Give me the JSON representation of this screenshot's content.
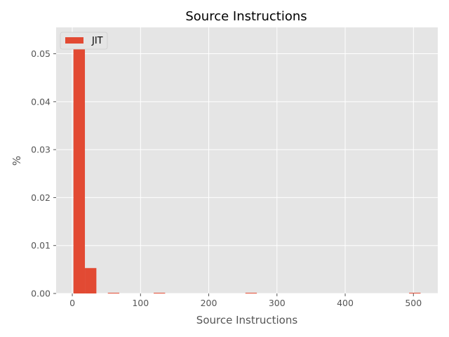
{
  "chart_data": {
    "type": "bar",
    "title": "Source Instructions",
    "xlabel": "Source Instructions",
    "ylabel": "%",
    "xlim": [
      -23.7,
      535.7
    ],
    "ylim": [
      0,
      0.0555
    ],
    "x_ticks": [
      0,
      100,
      200,
      300,
      400,
      500
    ],
    "y_ticks": [
      0.0,
      0.01,
      0.02,
      0.03,
      0.04,
      0.05
    ],
    "x_tick_labels": [
      "0",
      "100",
      "200",
      "300",
      "400",
      "500"
    ],
    "y_tick_labels": [
      "0.00",
      "0.01",
      "0.02",
      "0.03",
      "0.04",
      "0.05"
    ],
    "grid": true,
    "legend_position": "top-left",
    "series": [
      {
        "name": "JIT",
        "color": "#E24A33",
        "bins": [
          {
            "x0": 1.7,
            "x1": 18.5,
            "value": 0.0527
          },
          {
            "x0": 18.5,
            "x1": 35.3,
            "value": 0.0053
          },
          {
            "x0": 52.1,
            "x1": 68.9,
            "value": 0.00012
          },
          {
            "x0": 119.3,
            "x1": 136.1,
            "value": 0.0001
          },
          {
            "x0": 253.7,
            "x1": 270.5,
            "value": 0.0001
          },
          {
            "x0": 493.7,
            "x1": 510.5,
            "value": 0.0001
          }
        ]
      }
    ]
  }
}
